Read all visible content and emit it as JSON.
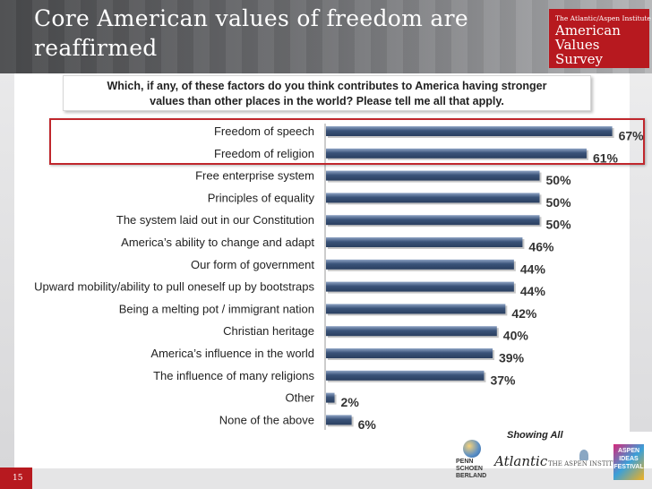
{
  "slide": {
    "title_line1": "Core American values of freedom are",
    "title_line2": "reaffirmed",
    "page_number": "15"
  },
  "brand": {
    "sub": "The Atlantic/Aspen Institute",
    "line1": "American",
    "line2": "Values",
    "line3": "Survey"
  },
  "question": {
    "line1": "Which, if any, of these factors do you think contributes to America having stronger",
    "line2": "values than other places in the world?  Please tell me all that apply."
  },
  "note": "Showing All",
  "logos": {
    "psb": [
      "PENN",
      "SCHOEN",
      "BERLAND"
    ],
    "atlantic": "Atlantic",
    "aspen": "THE ASPEN INSTITUTE",
    "festival": [
      "ASPEN",
      "IDEAS",
      "FESTIVAL"
    ]
  },
  "colors": {
    "bar": "#3a5379",
    "bar_light": "#7e95b8",
    "highlight": "#c0272d",
    "brand_red": "#b7191f"
  },
  "chart_data": {
    "type": "bar",
    "orientation": "horizontal",
    "value_suffix": "%",
    "xlim": [
      0,
      70
    ],
    "grid": false,
    "highlighted_categories": [
      "Freedom of speech",
      "Freedom of religion"
    ],
    "categories": [
      "Freedom of speech",
      "Freedom of religion",
      "Free enterprise system",
      "Principles of equality",
      "The system laid out in our Constitution",
      "America’s ability to change and adapt",
      "Our form of government",
      "Upward mobility/ability to pull oneself up by bootstraps",
      "Being a melting pot / immigrant nation",
      "Christian heritage",
      "America’s influence in the world",
      "The influence of many religions",
      "Other",
      "None of the above"
    ],
    "values": [
      67,
      61,
      50,
      50,
      50,
      46,
      44,
      44,
      42,
      40,
      39,
      37,
      2,
      6
    ],
    "value_labels": [
      "67%",
      "61%",
      "50%",
      "50%",
      "50%",
      "46%",
      "44%",
      "44%",
      "42%",
      "40%",
      "39%",
      "37%",
      "2%",
      "6%"
    ]
  }
}
